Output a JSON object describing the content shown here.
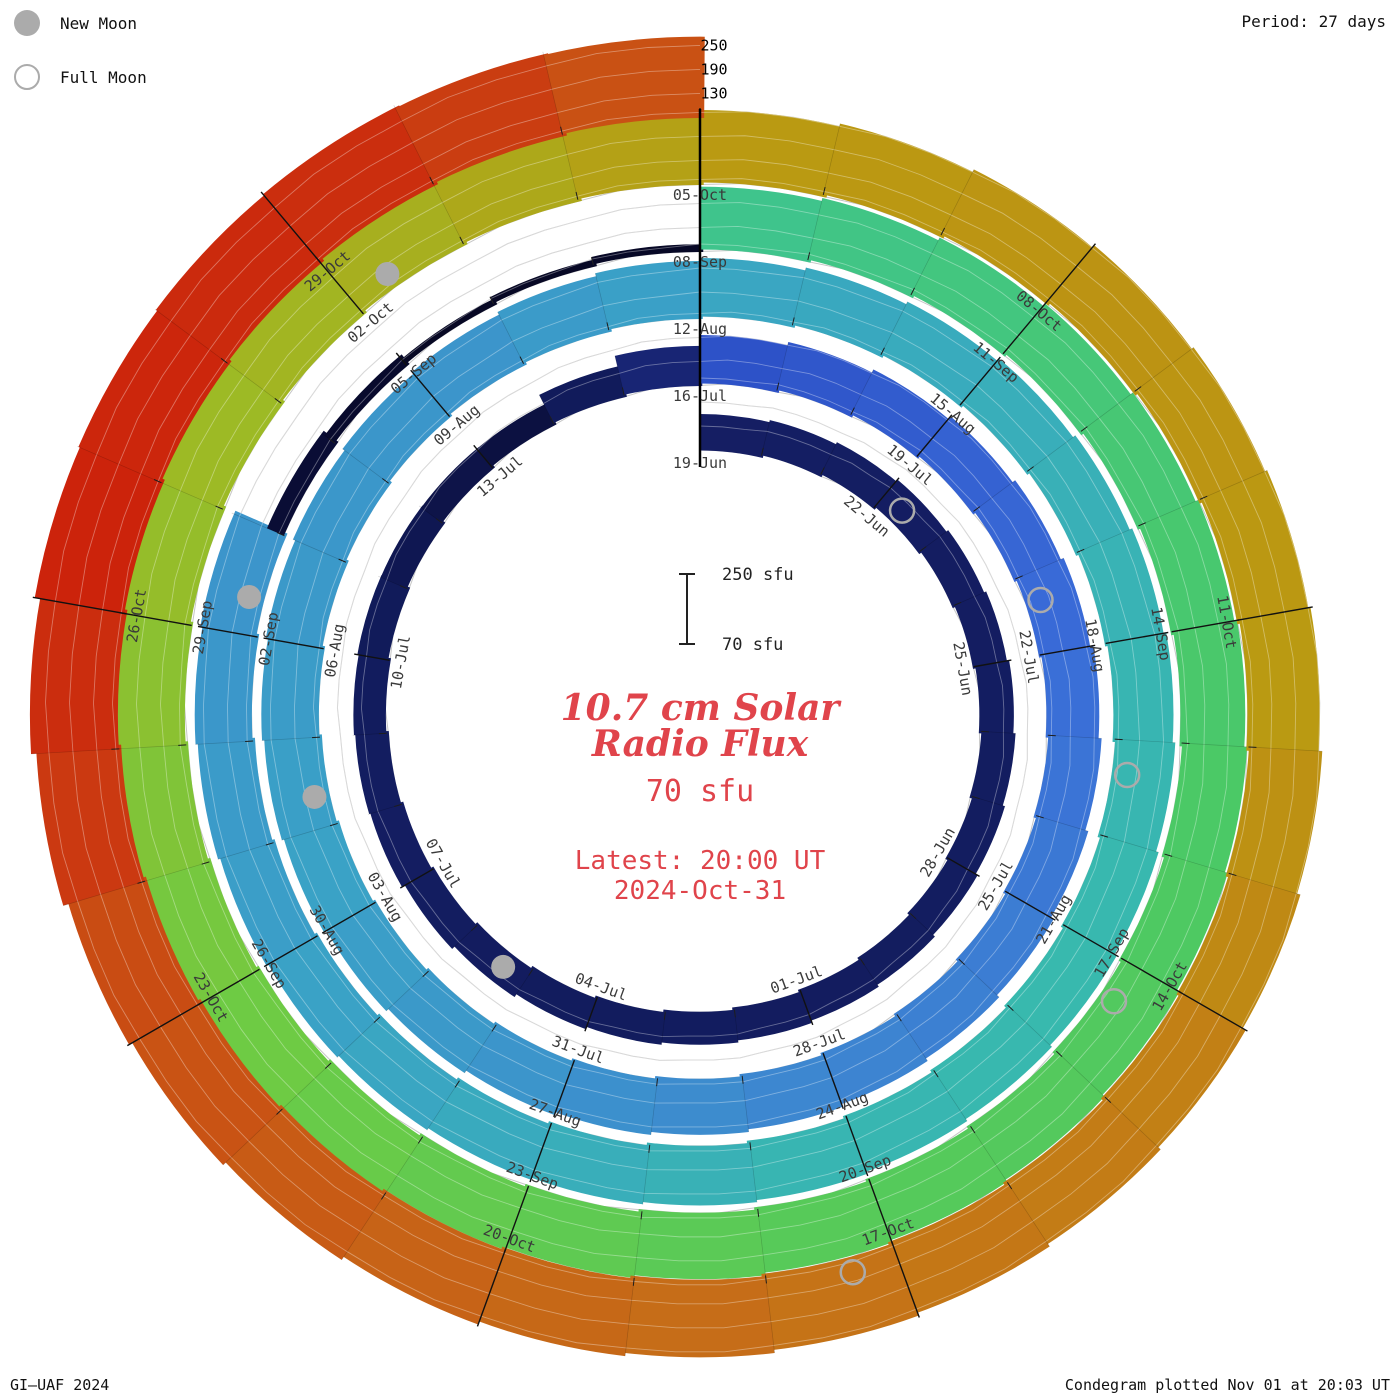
{
  "header": {
    "period_label": "Period: 27 days"
  },
  "legend": {
    "new_moon_label": "New Moon",
    "full_moon_label": "Full Moon",
    "moon_color": "#ababab"
  },
  "footer": {
    "left": "GI–UAF 2024",
    "right": "Condegram plotted Nov 01 at 20:03 UT"
  },
  "center": {
    "title_line1": "10.7 cm Solar",
    "title_line2": "Radio Flux",
    "base_flux_label": "70 sfu",
    "latest_line1": "Latest: 20:00 UT",
    "latest_line2": "2024-Oct-31",
    "accent_color": "#e0444b"
  },
  "scale_bar": {
    "top_label": "250 sfu",
    "bottom_label": "70 sfu"
  },
  "chart_data": {
    "type": "spiral_bar",
    "title": "10.7 cm Solar Radio Flux condegram",
    "start_date": "2024-06-19",
    "end_date": "2024-10-31",
    "period_days": 27,
    "base_flux_sfu": 70,
    "radial_ticks_sfu": [
      130,
      190,
      250
    ],
    "label_step_days": 3,
    "date_labels": [
      "19-Jun",
      "22-Jun",
      "25-Jun",
      "28-Jun",
      "01-Jul",
      "04-Jul",
      "07-Jul",
      "10-Jul",
      "13-Jul",
      "16-Jul",
      "19-Jul",
      "22-Jul",
      "25-Jul",
      "28-Jul",
      "31-Jul",
      "03-Aug",
      "06-Aug",
      "09-Aug",
      "12-Aug",
      "15-Aug",
      "18-Aug",
      "21-Aug",
      "24-Aug",
      "27-Aug",
      "30-Aug",
      "02-Sep",
      "05-Sep",
      "08-Sep",
      "11-Sep",
      "14-Sep",
      "17-Sep",
      "20-Sep",
      "23-Sep",
      "26-Sep",
      "29-Sep",
      "02-Oct",
      "05-Oct",
      "08-Oct",
      "11-Oct",
      "14-Oct",
      "17-Oct",
      "20-Oct",
      "23-Oct",
      "26-Oct",
      "29-Oct"
    ],
    "flux_samples": [
      {
        "date": "2024-06-19",
        "sfu": 160
      },
      {
        "date": "2024-06-22",
        "sfu": 157
      },
      {
        "date": "2024-06-25",
        "sfu": 155
      },
      {
        "date": "2024-06-28",
        "sfu": 153
      },
      {
        "date": "2024-07-01",
        "sfu": 152
      },
      {
        "date": "2024-07-04",
        "sfu": 150
      },
      {
        "date": "2024-07-07",
        "sfu": 156
      },
      {
        "date": "2024-07-10",
        "sfu": 147
      },
      {
        "date": "2024-07-13",
        "sfu": 127
      },
      {
        "date": "2024-07-16",
        "sfu": 190
      },
      {
        "date": "2024-07-19",
        "sfu": 196
      },
      {
        "date": "2024-07-22",
        "sfu": 201
      },
      {
        "date": "2024-07-25",
        "sfu": 205
      },
      {
        "date": "2024-07-28",
        "sfu": 208
      },
      {
        "date": "2024-07-31",
        "sfu": 211
      },
      {
        "date": "2024-08-03",
        "sfu": 214
      },
      {
        "date": "2024-08-06",
        "sfu": 212
      },
      {
        "date": "2024-08-09",
        "sfu": 211
      },
      {
        "date": "2024-08-12",
        "sfu": 215
      },
      {
        "date": "2024-08-15",
        "sfu": 217
      },
      {
        "date": "2024-08-18",
        "sfu": 219
      },
      {
        "date": "2024-08-21",
        "sfu": 220
      },
      {
        "date": "2024-08-24",
        "sfu": 219
      },
      {
        "date": "2024-08-27",
        "sfu": 216
      },
      {
        "date": "2024-08-30",
        "sfu": 213
      },
      {
        "date": "2024-09-02",
        "sfu": 211
      },
      {
        "date": "2024-09-03",
        "sfu": 115
      },
      {
        "date": "2024-09-05",
        "sfu": 85
      },
      {
        "date": "2024-09-07",
        "sfu": 88
      },
      {
        "date": "2024-09-08",
        "sfu": 226
      },
      {
        "date": "2024-09-11",
        "sfu": 229
      },
      {
        "date": "2024-09-14",
        "sfu": 231
      },
      {
        "date": "2024-09-17",
        "sfu": 233
      },
      {
        "date": "2024-09-20",
        "sfu": 234
      },
      {
        "date": "2024-09-23",
        "sfu": 236
      },
      {
        "date": "2024-09-26",
        "sfu": 239
      },
      {
        "date": "2024-09-29",
        "sfu": 243
      },
      {
        "date": "2024-10-02",
        "sfu": 246
      },
      {
        "date": "2024-10-05",
        "sfu": 250
      },
      {
        "date": "2024-10-08",
        "sfu": 252
      },
      {
        "date": "2024-10-11",
        "sfu": 250
      },
      {
        "date": "2024-10-14",
        "sfu": 257
      },
      {
        "date": "2024-10-17",
        "sfu": 261
      },
      {
        "date": "2024-10-20",
        "sfu": 266
      },
      {
        "date": "2024-10-23",
        "sfu": 274
      },
      {
        "date": "2024-10-26",
        "sfu": 296
      },
      {
        "date": "2024-10-29",
        "sfu": 288
      },
      {
        "date": "2024-10-31",
        "sfu": 272
      }
    ],
    "flux_color_stops": [
      {
        "sfu": 70,
        "color": "#05051c"
      },
      {
        "sfu": 120,
        "color": "#0a0e38"
      },
      {
        "sfu": 150,
        "color": "#121c5e"
      },
      {
        "sfu": 165,
        "color": "#161f66"
      },
      {
        "sfu": 178,
        "color": "#1e3394"
      },
      {
        "sfu": 190,
        "color": "#2d52c8"
      },
      {
        "sfu": 200,
        "color": "#3a6cd8"
      },
      {
        "sfu": 208,
        "color": "#3d87d0"
      },
      {
        "sfu": 214,
        "color": "#3aa2c6"
      },
      {
        "sfu": 220,
        "color": "#38b9ae"
      },
      {
        "sfu": 226,
        "color": "#3fc48c"
      },
      {
        "sfu": 232,
        "color": "#4cc964"
      },
      {
        "sfu": 238,
        "color": "#6ecb44"
      },
      {
        "sfu": 244,
        "color": "#9dba25"
      },
      {
        "sfu": 250,
        "color": "#ba9a12"
      },
      {
        "sfu": 257,
        "color": "#c28015"
      },
      {
        "sfu": 263,
        "color": "#c66c18"
      },
      {
        "sfu": 272,
        "color": "#c95114"
      },
      {
        "sfu": 283,
        "color": "#cb3510"
      },
      {
        "sfu": 300,
        "color": "#cc1d0a"
      },
      {
        "sfu": 330,
        "color": "#c60f05"
      }
    ],
    "new_moons": [
      "2024-07-05",
      "2024-08-04",
      "2024-09-02",
      "2024-10-02"
    ],
    "full_moons": [
      "2024-06-22",
      "2024-07-21",
      "2024-08-19",
      "2024-09-17",
      "2024-10-17"
    ]
  }
}
